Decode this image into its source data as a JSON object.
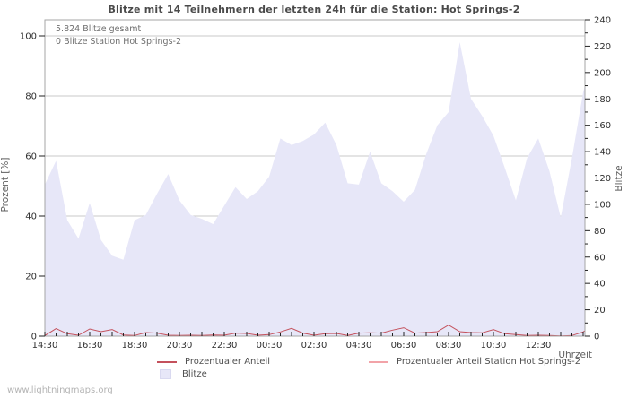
{
  "title": "Blitze mit 14 Teilnehmern der letzten 24h für die Station: Hot Springs-2",
  "annotations": {
    "total": "5.824 Blitze gesamt",
    "station": "0 Blitze Station Hot Springs-2"
  },
  "axes": {
    "left_label": "Prozent  [%]",
    "right_label": "Blitze",
    "x_label": "Uhrzeit"
  },
  "legend": {
    "pct": {
      "label": "Prozentualer Anteil",
      "color": "#c4515c"
    },
    "pct_station": {
      "label": "Prozentualer Anteil Station Hot Springs-2",
      "color": "#f2a3a8"
    },
    "blitze": {
      "label": "Blitze",
      "color": "#e7e7f8"
    }
  },
  "watermark": "www.lightningmaps.org",
  "colors": {
    "area_fill": "#e7e7f8",
    "pct_line": "#c4515c",
    "station_line": "#f2a3a8",
    "grid": "#c9c9c9",
    "frame": "#a6a6a6",
    "tick": "#222222",
    "tick_label": "#303030"
  },
  "chart_data": {
    "type": "area",
    "x": [
      "14:30",
      "15:00",
      "15:30",
      "16:00",
      "16:30",
      "17:00",
      "17:30",
      "18:00",
      "18:30",
      "19:00",
      "19:30",
      "20:00",
      "20:30",
      "21:00",
      "21:30",
      "22:00",
      "22:30",
      "23:00",
      "23:30",
      "00:00",
      "00:30",
      "01:00",
      "01:30",
      "02:00",
      "02:30",
      "03:00",
      "03:30",
      "04:00",
      "04:30",
      "05:00",
      "05:30",
      "06:00",
      "06:30",
      "07:00",
      "07:30",
      "08:00",
      "08:30",
      "09:00",
      "09:30",
      "10:00",
      "10:30",
      "11:00",
      "11:30",
      "12:00",
      "12:30",
      "13:00",
      "13:30",
      "14:00",
      "14:30"
    ],
    "series": [
      {
        "name": "Blitze",
        "style": "area",
        "axis": "right",
        "values": [
          115,
          133,
          88,
          74,
          101,
          73,
          61,
          58,
          88,
          92,
          108,
          123,
          103,
          92,
          89,
          85,
          99,
          113,
          104,
          110,
          121,
          150,
          145,
          148,
          153,
          162,
          145,
          116,
          115,
          140,
          116,
          110,
          102,
          111,
          138,
          160,
          170,
          223,
          180,
          167,
          152,
          128,
          103,
          135,
          150,
          125,
          90,
          135,
          185
        ]
      },
      {
        "name": "Prozentualer Anteil",
        "style": "line",
        "axis": "left",
        "values": [
          0.2,
          2.5,
          0.8,
          0.3,
          2.4,
          1.5,
          2.2,
          0.4,
          0.2,
          1.2,
          1.0,
          0.3,
          0.2,
          0.3,
          0.2,
          0.4,
          0.3,
          1.0,
          0.9,
          0.3,
          0.5,
          1.4,
          2.6,
          1.0,
          0.3,
          0.8,
          0.9,
          0.2,
          1.0,
          1.1,
          1.0,
          2.0,
          2.8,
          1.0,
          1.2,
          1.5,
          3.7,
          1.5,
          1.2,
          1.1,
          2.2,
          0.8,
          0.5,
          0.2,
          0.3,
          0.2,
          0.1,
          0.2,
          1.4
        ]
      },
      {
        "name": "Prozentualer Anteil Station Hot Springs-2",
        "style": "line",
        "axis": "left",
        "values": [
          0,
          0,
          0,
          0,
          0,
          0,
          0,
          0,
          0,
          0,
          0,
          0,
          0,
          0,
          0,
          0,
          0,
          0,
          0,
          0,
          0,
          0,
          0,
          0,
          0,
          0,
          0,
          0,
          0,
          0,
          0,
          0,
          0,
          0,
          0,
          0,
          0,
          0,
          0,
          0,
          0,
          0,
          0,
          0,
          0,
          0,
          0,
          0,
          0
        ]
      }
    ],
    "title": "Blitze mit 14 Teilnehmern der letzten 24h für die Station: Hot Springs-2",
    "xlabel": "Uhrzeit",
    "ylabel_left": "Prozent [%]",
    "ylabel_right": "Blitze",
    "left_axis": {
      "ticks": [
        0,
        20,
        40,
        60,
        80,
        100
      ],
      "range": [
        0,
        100
      ]
    },
    "right_axis": {
      "ticks": [
        0,
        20,
        40,
        60,
        80,
        100,
        120,
        140,
        160,
        180,
        200,
        220,
        240
      ],
      "minor_step": 10,
      "range": [
        0,
        240
      ]
    },
    "x_tick_labels": [
      "14:30",
      "16:30",
      "18:30",
      "20:30",
      "22:30",
      "00:30",
      "02:30",
      "04:30",
      "06:30",
      "08:30",
      "10:30",
      "12:30"
    ],
    "grid": "horizontal",
    "legend_position": "bottom"
  }
}
